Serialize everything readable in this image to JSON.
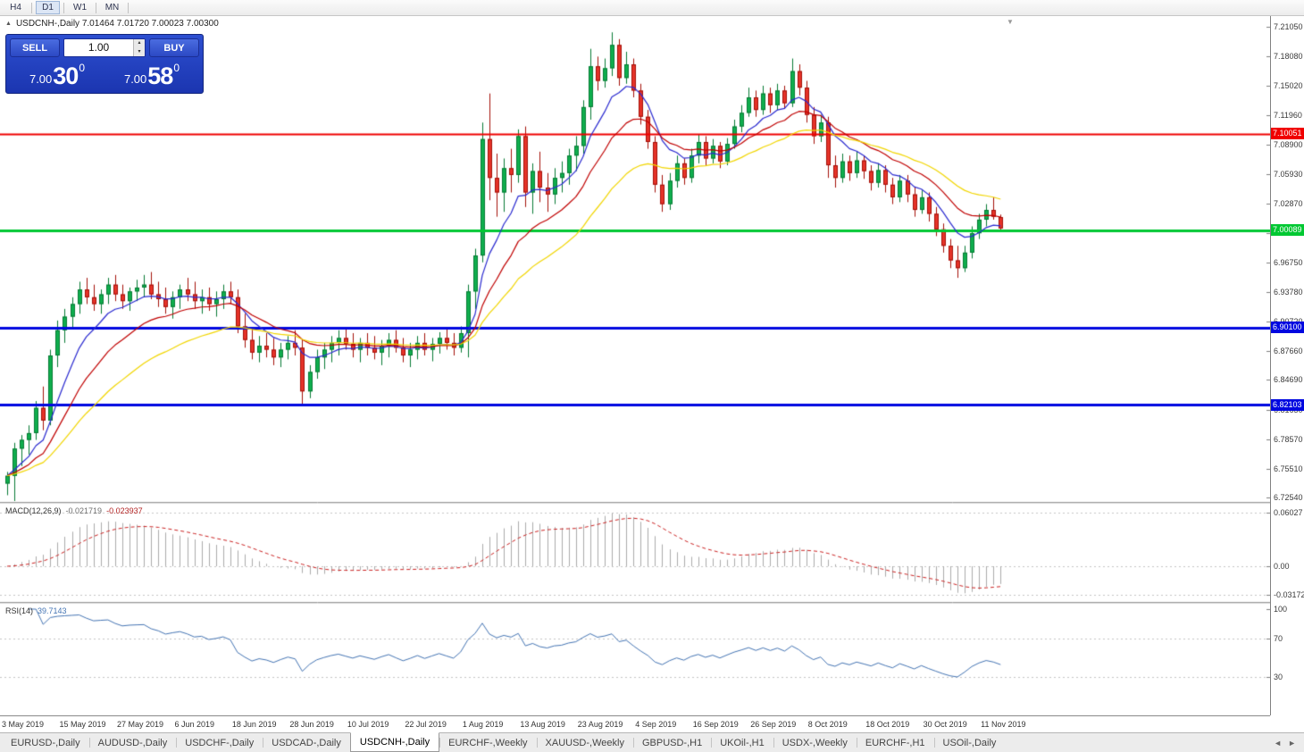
{
  "toolbar": {
    "timeframes": [
      {
        "label": "H4",
        "active": false
      },
      {
        "label": "D1",
        "active": true
      },
      {
        "label": "W1",
        "active": false
      },
      {
        "label": "MN",
        "active": false
      }
    ]
  },
  "symbol_header": {
    "collapse_icon": "▲",
    "text": "USDCNH-,Daily  7.01464 7.01720 7.00023 7.00300"
  },
  "trade_panel": {
    "sell_label": "SELL",
    "buy_label": "BUY",
    "volume_value": "1.00",
    "spin_up_icon": "▴",
    "spin_down_icon": "▾",
    "sell_price": {
      "big": "7.00",
      "pips": "30",
      "sup": "0"
    },
    "buy_price": {
      "big": "7.00",
      "pips": "58",
      "sup": "0"
    }
  },
  "shift_marker_icon": "▼",
  "chart_data": {
    "type": "candlestick",
    "symbol": "USDCNH-",
    "timeframe": "Daily",
    "ohlc_display": {
      "open": "7.01464",
      "high": "7.01720",
      "low": "7.00023",
      "close": "7.00300"
    },
    "y_axis": {
      "min": 6.722,
      "max": 7.219,
      "labels": [
        "7.21050",
        "7.18080",
        "7.15020",
        "7.11960",
        "7.08900",
        "7.05930",
        "7.02870",
        "6.99810",
        "6.96750",
        "6.93780",
        "6.90720",
        "6.87660",
        "6.84690",
        "6.81630",
        "6.78570",
        "6.75510",
        "6.72540"
      ]
    },
    "hlines": [
      {
        "price": 7.10051,
        "label": "7.10051",
        "color": "#f00000",
        "width": 2
      },
      {
        "price": 7.00089,
        "label": "7.00089",
        "color": "#00c832",
        "width": 3
      },
      {
        "price": 6.901,
        "label": "6.90100",
        "color": "#0008e0",
        "width": 3
      },
      {
        "price": 6.82103,
        "label": "6.82103",
        "color": "#0008e0",
        "width": 3
      }
    ],
    "x_labels": [
      {
        "text": "3 May 2019",
        "bar": 0
      },
      {
        "text": "15 May 2019",
        "bar": 8
      },
      {
        "text": "27 May 2019",
        "bar": 16
      },
      {
        "text": "6 Jun 2019",
        "bar": 24
      },
      {
        "text": "18 Jun 2019",
        "bar": 32
      },
      {
        "text": "28 Jun 2019",
        "bar": 40
      },
      {
        "text": "10 Jul 2019",
        "bar": 48
      },
      {
        "text": "22 Jul 2019",
        "bar": 56
      },
      {
        "text": "1 Aug 2019",
        "bar": 64
      },
      {
        "text": "13 Aug 2019",
        "bar": 72
      },
      {
        "text": "23 Aug 2019",
        "bar": 80
      },
      {
        "text": "4 Sep 2019",
        "bar": 88
      },
      {
        "text": "16 Sep 2019",
        "bar": 96
      },
      {
        "text": "26 Sep 2019",
        "bar": 104
      },
      {
        "text": "8 Oct 2019",
        "bar": 112
      },
      {
        "text": "18 Oct 2019",
        "bar": 120
      },
      {
        "text": "30 Oct 2019",
        "bar": 128
      },
      {
        "text": "11 Nov 2019",
        "bar": 136
      }
    ],
    "moving_averages": [
      {
        "name": "fast",
        "period": 8,
        "color": "#2a2ad0"
      },
      {
        "name": "medium",
        "period": 16,
        "color": "#c00000"
      },
      {
        "name": "slow",
        "period": 30,
        "color": "#f2d600"
      }
    ],
    "macd": {
      "label": "MACD(12,26,9)",
      "value_main": "-0.021719",
      "value_signal": "-0.023937",
      "fast": 12,
      "slow": 26,
      "signal": 9,
      "range": [
        -0.036,
        0.066
      ],
      "axis_labels": [
        {
          "text": "0.06027",
          "value": 0.06027
        },
        {
          "text": "0.00",
          "value": 0
        },
        {
          "text": "-0.03172",
          "value": -0.03172
        }
      ],
      "histogram_color": "#ababab",
      "signal_color": "#cc2222"
    },
    "rsi": {
      "label": "RSI(14)",
      "value": "39.7143",
      "period": 14,
      "levels": [
        70,
        30
      ],
      "axis_labels": [
        {
          "text": "100",
          "value": 100
        },
        {
          "text": "70",
          "value": 70
        },
        {
          "text": "30",
          "value": 30
        }
      ],
      "color": "#4575b4"
    },
    "colors": {
      "up_fill": "#0fae4e",
      "up_border": "#067a33",
      "down_fill": "#e63329",
      "down_border": "#a30f08"
    },
    "candles": [
      [
        6.74,
        6.752,
        6.728,
        6.748
      ],
      [
        6.748,
        6.782,
        6.722,
        6.776
      ],
      [
        6.776,
        6.79,
        6.758,
        6.785
      ],
      [
        6.785,
        6.8,
        6.77,
        6.792
      ],
      [
        6.792,
        6.825,
        6.785,
        6.818
      ],
      [
        6.818,
        6.84,
        6.795,
        6.805
      ],
      [
        6.805,
        6.878,
        6.8,
        6.872
      ],
      [
        6.872,
        6.908,
        6.86,
        6.898
      ],
      [
        6.898,
        6.92,
        6.885,
        6.912
      ],
      [
        6.912,
        6.932,
        6.9,
        6.925
      ],
      [
        6.925,
        6.948,
        6.915,
        6.94
      ],
      [
        6.94,
        6.952,
        6.925,
        6.932
      ],
      [
        6.932,
        6.945,
        6.918,
        6.925
      ],
      [
        6.925,
        6.94,
        6.915,
        6.935
      ],
      [
        6.935,
        6.952,
        6.925,
        6.945
      ],
      [
        6.945,
        6.955,
        6.928,
        6.935
      ],
      [
        6.935,
        6.945,
        6.92,
        6.928
      ],
      [
        6.928,
        6.942,
        6.918,
        6.938
      ],
      [
        6.938,
        6.95,
        6.928,
        6.942
      ],
      [
        6.942,
        6.955,
        6.932,
        6.945
      ],
      [
        6.945,
        6.958,
        6.93,
        6.935
      ],
      [
        6.935,
        6.948,
        6.922,
        6.93
      ],
      [
        6.93,
        6.942,
        6.915,
        6.922
      ],
      [
        6.922,
        6.938,
        6.91,
        6.932
      ],
      [
        6.932,
        6.945,
        6.92,
        6.94
      ],
      [
        6.94,
        6.952,
        6.928,
        6.935
      ],
      [
        6.935,
        6.948,
        6.92,
        6.928
      ],
      [
        6.928,
        6.94,
        6.915,
        6.932
      ],
      [
        6.932,
        6.942,
        6.918,
        6.925
      ],
      [
        6.925,
        6.938,
        6.912,
        6.93
      ],
      [
        6.93,
        6.945,
        6.92,
        6.938
      ],
      [
        6.938,
        6.948,
        6.925,
        6.932
      ],
      [
        6.932,
        6.94,
        6.895,
        6.902
      ],
      [
        6.902,
        6.915,
        6.88,
        6.888
      ],
      [
        6.888,
        6.9,
        6.868,
        6.875
      ],
      [
        6.875,
        6.892,
        6.865,
        6.882
      ],
      [
        6.882,
        6.895,
        6.87,
        6.878
      ],
      [
        6.878,
        6.89,
        6.862,
        6.87
      ],
      [
        6.87,
        6.885,
        6.86,
        6.878
      ],
      [
        6.878,
        6.892,
        6.868,
        6.885
      ],
      [
        6.885,
        6.898,
        6.872,
        6.88
      ],
      [
        6.88,
        6.888,
        6.822,
        6.835
      ],
      [
        6.835,
        6.862,
        6.828,
        6.855
      ],
      [
        6.855,
        6.878,
        6.848,
        6.87
      ],
      [
        6.87,
        6.885,
        6.858,
        6.878
      ],
      [
        6.878,
        6.892,
        6.865,
        6.885
      ],
      [
        6.885,
        6.898,
        6.872,
        6.89
      ],
      [
        6.89,
        6.9,
        6.878,
        6.884
      ],
      [
        6.884,
        6.895,
        6.87,
        6.878
      ],
      [
        6.878,
        6.89,
        6.865,
        6.885
      ],
      [
        6.885,
        6.895,
        6.872,
        6.88
      ],
      [
        6.88,
        6.892,
        6.868,
        6.875
      ],
      [
        6.875,
        6.888,
        6.862,
        6.882
      ],
      [
        6.882,
        6.895,
        6.87,
        6.888
      ],
      [
        6.888,
        6.898,
        6.875,
        6.88
      ],
      [
        6.88,
        6.89,
        6.865,
        6.872
      ],
      [
        6.872,
        6.885,
        6.86,
        6.878
      ],
      [
        6.878,
        6.892,
        6.868,
        6.885
      ],
      [
        6.885,
        6.895,
        6.872,
        6.878
      ],
      [
        6.878,
        6.89,
        6.866,
        6.884
      ],
      [
        6.884,
        6.896,
        6.874,
        6.89
      ],
      [
        6.89,
        6.9,
        6.878,
        6.885
      ],
      [
        6.885,
        6.895,
        6.872,
        6.88
      ],
      [
        6.88,
        6.902,
        6.875,
        6.895
      ],
      [
        6.895,
        6.945,
        6.87,
        6.938
      ],
      [
        6.938,
        6.982,
        6.92,
        6.975
      ],
      [
        6.975,
        7.112,
        6.968,
        7.095
      ],
      [
        7.095,
        7.142,
        7.032,
        7.055
      ],
      [
        7.055,
        7.08,
        7.015,
        7.04
      ],
      [
        7.04,
        7.075,
        7.02,
        7.065
      ],
      [
        7.065,
        7.085,
        7.04,
        7.058
      ],
      [
        7.058,
        7.105,
        7.05,
        7.098
      ],
      [
        7.098,
        7.108,
        7.025,
        7.04
      ],
      [
        7.04,
        7.07,
        7.018,
        7.062
      ],
      [
        7.062,
        7.082,
        7.03,
        7.045
      ],
      [
        7.045,
        7.06,
        7.02,
        7.038
      ],
      [
        7.038,
        7.065,
        7.028,
        7.055
      ],
      [
        7.055,
        7.072,
        7.04,
        7.06
      ],
      [
        7.06,
        7.085,
        7.048,
        7.078
      ],
      [
        7.078,
        7.098,
        7.062,
        7.088
      ],
      [
        7.088,
        7.135,
        7.08,
        7.128
      ],
      [
        7.128,
        7.188,
        7.115,
        7.17
      ],
      [
        7.17,
        7.18,
        7.145,
        7.155
      ],
      [
        7.155,
        7.178,
        7.148,
        7.168
      ],
      [
        7.168,
        7.205,
        7.16,
        7.192
      ],
      [
        7.192,
        7.198,
        7.15,
        7.158
      ],
      [
        7.158,
        7.185,
        7.152,
        7.172
      ],
      [
        7.172,
        7.178,
        7.138,
        7.145
      ],
      [
        7.145,
        7.152,
        7.11,
        7.118
      ],
      [
        7.118,
        7.125,
        7.085,
        7.092
      ],
      [
        7.092,
        7.098,
        7.04,
        7.048
      ],
      [
        7.048,
        7.058,
        7.02,
        7.028
      ],
      [
        7.028,
        7.06,
        7.022,
        7.052
      ],
      [
        7.052,
        7.078,
        7.045,
        7.07
      ],
      [
        7.07,
        7.075,
        7.048,
        7.055
      ],
      [
        7.055,
        7.085,
        7.05,
        7.078
      ],
      [
        7.078,
        7.1,
        7.07,
        7.092
      ],
      [
        7.092,
        7.098,
        7.068,
        7.075
      ],
      [
        7.075,
        7.095,
        7.07,
        7.088
      ],
      [
        7.088,
        7.092,
        7.065,
        7.072
      ],
      [
        7.072,
        7.096,
        7.068,
        7.09
      ],
      [
        7.09,
        7.115,
        7.085,
        7.108
      ],
      [
        7.108,
        7.13,
        7.102,
        7.122
      ],
      [
        7.122,
        7.148,
        7.118,
        7.138
      ],
      [
        7.138,
        7.145,
        7.118,
        7.125
      ],
      [
        7.125,
        7.15,
        7.12,
        7.142
      ],
      [
        7.142,
        7.148,
        7.122,
        7.13
      ],
      [
        7.13,
        7.152,
        7.125,
        7.145
      ],
      [
        7.145,
        7.15,
        7.126,
        7.132
      ],
      [
        7.132,
        7.178,
        7.128,
        7.165
      ],
      [
        7.165,
        7.172,
        7.14,
        7.148
      ],
      [
        7.148,
        7.155,
        7.112,
        7.12
      ],
      [
        7.12,
        7.128,
        7.09,
        7.098
      ],
      [
        7.098,
        7.12,
        7.092,
        7.112
      ],
      [
        7.112,
        7.118,
        7.055,
        7.068
      ],
      [
        7.068,
        7.078,
        7.045,
        7.055
      ],
      [
        7.055,
        7.08,
        7.05,
        7.072
      ],
      [
        7.072,
        7.078,
        7.052,
        7.06
      ],
      [
        7.06,
        7.082,
        7.055,
        7.073
      ],
      [
        7.073,
        7.078,
        7.054,
        7.062
      ],
      [
        7.062,
        7.068,
        7.042,
        7.05
      ],
      [
        7.05,
        7.07,
        7.045,
        7.063
      ],
      [
        7.063,
        7.068,
        7.04,
        7.048
      ],
      [
        7.048,
        7.055,
        7.028,
        7.035
      ],
      [
        7.035,
        7.058,
        7.03,
        7.052
      ],
      [
        7.052,
        7.058,
        7.03,
        7.038
      ],
      [
        7.038,
        7.045,
        7.015,
        7.022
      ],
      [
        7.022,
        7.042,
        7.018,
        7.035
      ],
      [
        7.035,
        7.04,
        7.01,
        7.018
      ],
      [
        7.018,
        7.025,
        6.995,
        7.002
      ],
      [
        7.002,
        7.008,
        6.978,
        6.985
      ],
      [
        6.985,
        6.992,
        6.962,
        6.97
      ],
      [
        6.97,
        6.985,
        6.952,
        6.962
      ],
      [
        6.962,
        6.985,
        6.958,
        6.978
      ],
      [
        6.978,
        7.005,
        6.972,
        6.998
      ],
      [
        6.998,
        7.018,
        6.992,
        7.012
      ],
      [
        7.012,
        7.028,
        7.005,
        7.022
      ],
      [
        7.022,
        7.035,
        7.012,
        7.015
      ],
      [
        7.01464,
        7.0172,
        7.00023,
        7.003
      ]
    ]
  },
  "tabs": {
    "items": [
      "EURUSD-,Daily",
      "AUDUSD-,Daily",
      "USDCHF-,Daily",
      "USDCAD-,Daily",
      "USDCNH-,Daily",
      "EURCHF-,Weekly",
      "XAUUSD-,Weekly",
      "GBPUSD-,H1",
      "UKOil-,H1",
      "USDX-,Weekly",
      "EURCHF-,H1",
      "USOil-,Daily"
    ],
    "active_index": 4,
    "scroll_left_icon": "◄",
    "scroll_right_icon": "►"
  }
}
